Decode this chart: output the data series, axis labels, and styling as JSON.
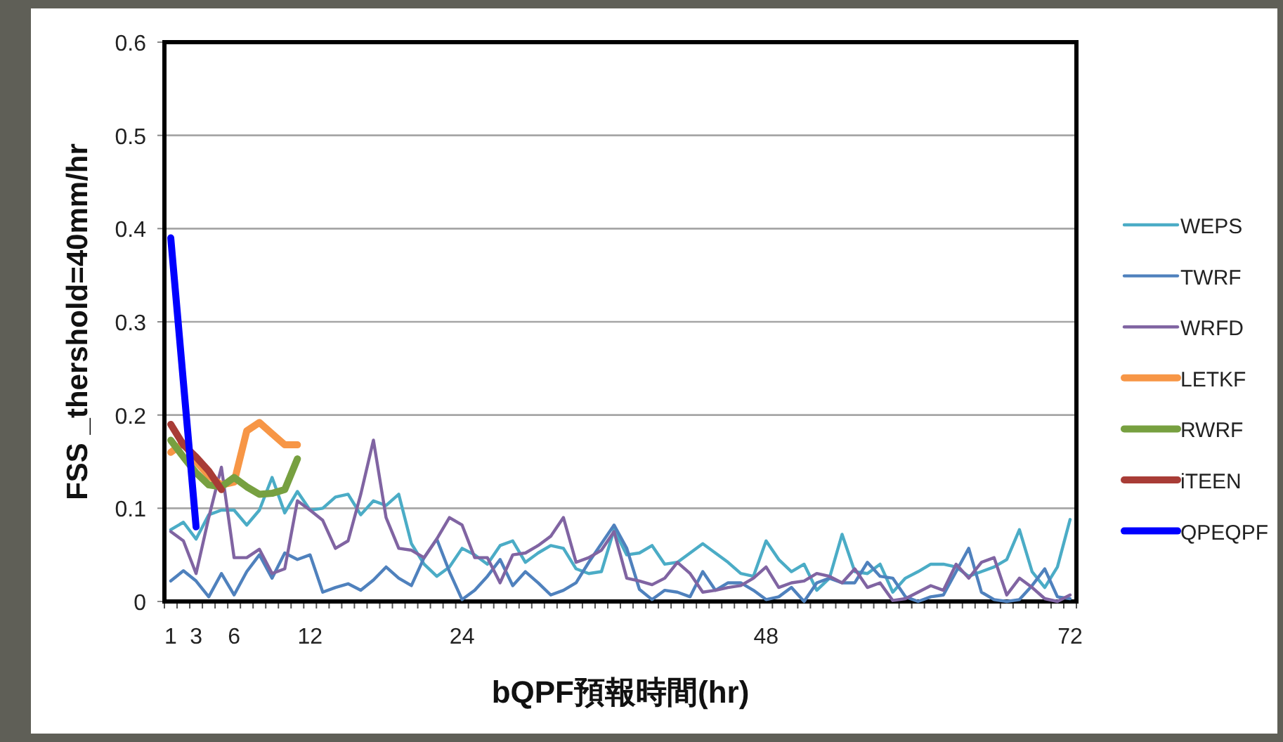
{
  "chart_data": {
    "type": "line",
    "xlabel": "bQPF預報時間(hr)",
    "ylabel": "FSS _thershold=40mm/hr",
    "categories": [
      "1",
      null,
      "3",
      null,
      null,
      "6",
      null,
      null,
      null,
      null,
      null,
      "12",
      null,
      null,
      null,
      null,
      null,
      null,
      null,
      null,
      null,
      null,
      null,
      "24",
      null,
      null,
      null,
      null,
      null,
      null,
      null,
      null,
      null,
      null,
      null,
      null,
      null,
      null,
      null,
      null,
      null,
      null,
      null,
      null,
      null,
      null,
      null,
      "48",
      null,
      null,
      null,
      null,
      null,
      null,
      null,
      null,
      null,
      null,
      null,
      null,
      null,
      null,
      null,
      null,
      null,
      null,
      null,
      null,
      null,
      null,
      null,
      "72"
    ],
    "ylim": [
      0,
      0.6
    ],
    "yticks": [
      0,
      0.1,
      0.2,
      0.3,
      0.4,
      0.5,
      0.6
    ],
    "grid": "y",
    "legend": "right",
    "marker": "none",
    "line_style": "solid",
    "series": [
      {
        "name": "WEPS",
        "color": "#4bacc6",
        "values": [
          0.077,
          0.085,
          0.067,
          0.093,
          0.098,
          0.098,
          0.082,
          0.098,
          0.133,
          0.095,
          0.118,
          0.098,
          0.1,
          0.112,
          0.115,
          0.093,
          0.108,
          0.103,
          0.115,
          0.062,
          0.04,
          0.027,
          0.037,
          0.057,
          0.05,
          0.04,
          0.06,
          0.065,
          0.042,
          0.052,
          0.06,
          0.057,
          0.035,
          0.03,
          0.032,
          0.077,
          0.05,
          0.052,
          0.06,
          0.04,
          0.042,
          0.052,
          0.062,
          0.052,
          0.042,
          0.03,
          0.027,
          0.065,
          0.045,
          0.032,
          0.04,
          0.012,
          0.025,
          0.072,
          0.032,
          0.03,
          0.04,
          0.01,
          0.025,
          0.032,
          0.04,
          0.04,
          0.037,
          0.027,
          0.032,
          0.037,
          0.045,
          0.077,
          0.032,
          0.015,
          0.037,
          0.088
        ]
      },
      {
        "name": "TWRF",
        "color": "#4f81bd",
        "values": [
          0.022,
          0.033,
          0.022,
          0.005,
          0.03,
          0.007,
          0.032,
          0.05,
          0.025,
          0.052,
          0.045,
          0.05,
          0.01,
          0.015,
          0.019,
          0.012,
          0.023,
          0.037,
          0.025,
          0.017,
          0.047,
          0.067,
          0.032,
          0.002,
          0.012,
          0.027,
          0.045,
          0.017,
          0.032,
          0.02,
          0.007,
          0.012,
          0.02,
          0.042,
          0.062,
          0.082,
          0.057,
          0.013,
          0.002,
          0.012,
          0.01,
          0.005,
          0.032,
          0.012,
          0.02,
          0.02,
          0.012,
          0.002,
          0.005,
          0.015,
          0,
          0.02,
          0.025,
          0.02,
          0.02,
          0.042,
          0.027,
          0.025,
          0.005,
          0,
          0.005,
          0.007,
          0.032,
          0.057,
          0.01,
          0.002,
          0,
          0.002,
          0.017,
          0.035,
          0.005,
          0.003
        ]
      },
      {
        "name": "WRFD",
        "color": "#8064a2",
        "values": [
          0.075,
          0.065,
          0.03,
          0.09,
          0.144,
          0.047,
          0.047,
          0.056,
          0.03,
          0.035,
          0.108,
          0.098,
          0.087,
          0.057,
          0.065,
          0.115,
          0.173,
          0.09,
          0.057,
          0.055,
          0.047,
          0.067,
          0.09,
          0.082,
          0.047,
          0.047,
          0.02,
          0.05,
          0.052,
          0.06,
          0.07,
          0.09,
          0.042,
          0.047,
          0.055,
          0.075,
          0.025,
          0.022,
          0.018,
          0.025,
          0.042,
          0.03,
          0.01,
          0.012,
          0.015,
          0.017,
          0.025,
          0.037,
          0.015,
          0.02,
          0.022,
          0.03,
          0.027,
          0.02,
          0.035,
          0.015,
          0.02,
          0.001,
          0.003,
          0.01,
          0.017,
          0.012,
          0.04,
          0.025,
          0.042,
          0.047,
          0.007,
          0.025,
          0.015,
          0.003,
          0,
          0.007
        ]
      },
      {
        "name": "LETKF",
        "color": "#f79646",
        "values": [
          0.16,
          0.17,
          0.15,
          0.135,
          0.125,
          0.128,
          0.183,
          0.192,
          0.18,
          0.168,
          0.168,
          null,
          null,
          null,
          null,
          null,
          null,
          null,
          null,
          null,
          null,
          null,
          null,
          null,
          null,
          null,
          null,
          null,
          null,
          null,
          null,
          null,
          null,
          null,
          null,
          null,
          null,
          null,
          null,
          null,
          null,
          null,
          null,
          null,
          null,
          null,
          null,
          null,
          null,
          null,
          null,
          null,
          null,
          null,
          null,
          null,
          null,
          null,
          null,
          null,
          null,
          null,
          null,
          null,
          null,
          null,
          null,
          null,
          null,
          null,
          null,
          null
        ]
      },
      {
        "name": "RWRF",
        "color": "#77a040",
        "values": [
          0.173,
          0.155,
          0.138,
          0.125,
          0.123,
          0.133,
          0.123,
          0.115,
          0.116,
          0.12,
          0.153,
          null,
          null,
          null,
          null,
          null,
          null,
          null,
          null,
          null,
          null,
          null,
          null,
          null,
          null,
          null,
          null,
          null,
          null,
          null,
          null,
          null,
          null,
          null,
          null,
          null,
          null,
          null,
          null,
          null,
          null,
          null,
          null,
          null,
          null,
          null,
          null,
          null,
          null,
          null,
          null,
          null,
          null,
          null,
          null,
          null,
          null,
          null,
          null,
          null,
          null,
          null,
          null,
          null,
          null,
          null,
          null,
          null,
          null,
          null,
          null,
          null
        ]
      },
      {
        "name": "iTEEN",
        "color": "#a83c36",
        "values": [
          0.19,
          0.168,
          0.155,
          0.14,
          0.12,
          null,
          null,
          null,
          null,
          null,
          null,
          null,
          null,
          null,
          null,
          null,
          null,
          null,
          null,
          null,
          null,
          null,
          null,
          null,
          null,
          null,
          null,
          null,
          null,
          null,
          null,
          null,
          null,
          null,
          null,
          null,
          null,
          null,
          null,
          null,
          null,
          null,
          null,
          null,
          null,
          null,
          null,
          null,
          null,
          null,
          null,
          null,
          null,
          null,
          null,
          null,
          null,
          null,
          null,
          null,
          null,
          null,
          null,
          null,
          null,
          null,
          null,
          null,
          null,
          null,
          null,
          null
        ]
      },
      {
        "name": "QPEQPF",
        "color": "#0000ff",
        "values": [
          0.39,
          0.235,
          0.08,
          null,
          null,
          null,
          null,
          null,
          null,
          null,
          null,
          null,
          null,
          null,
          null,
          null,
          null,
          null,
          null,
          null,
          null,
          null,
          null,
          null,
          null,
          null,
          null,
          null,
          null,
          null,
          null,
          null,
          null,
          null,
          null,
          null,
          null,
          null,
          null,
          null,
          null,
          null,
          null,
          null,
          null,
          null,
          null,
          null,
          null,
          null,
          null,
          null,
          null,
          null,
          null,
          null,
          null,
          null,
          null,
          null,
          null,
          null,
          null,
          null,
          null,
          null,
          null,
          null,
          null,
          null,
          null,
          null
        ]
      }
    ]
  }
}
